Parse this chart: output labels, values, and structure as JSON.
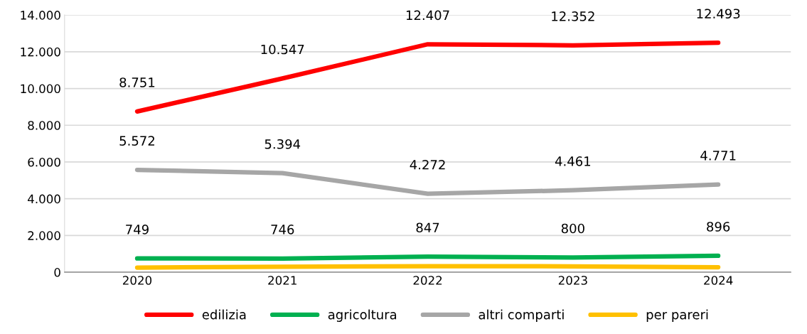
{
  "chart_data": {
    "type": "line",
    "categories": [
      "2020",
      "2021",
      "2022",
      "2023",
      "2024"
    ],
    "series": [
      {
        "name": "edilizia",
        "color": "#ff0000",
        "values": [
          8751,
          10547,
          12407,
          12352,
          12493
        ],
        "value_labels": [
          "8.751",
          "10.547",
          "12.407",
          "12.352",
          "12.493"
        ]
      },
      {
        "name": "agricoltura",
        "color": "#00b050",
        "values": [
          749,
          746,
          847,
          800,
          896
        ],
        "value_labels": [
          "749",
          "746",
          "847",
          "800",
          "896"
        ]
      },
      {
        "name": "altri comparti",
        "color": "#a6a6a6",
        "values": [
          5572,
          5394,
          4272,
          4461,
          4771
        ],
        "value_labels": [
          "5.572",
          "5.394",
          "4.272",
          "4.461",
          "4.771"
        ]
      },
      {
        "name": "per pareri",
        "color": "#ffc000",
        "values": [
          250,
          300,
          330,
          320,
          270
        ]
      }
    ],
    "ylim": [
      0,
      14000
    ],
    "yticks": [
      {
        "value": 0,
        "label": "0"
      },
      {
        "value": 2000,
        "label": "2.000"
      },
      {
        "value": 4000,
        "label": "4.000"
      },
      {
        "value": 6000,
        "label": "6.000"
      },
      {
        "value": 8000,
        "label": "8.000"
      },
      {
        "value": 10000,
        "label": "10.000"
      },
      {
        "value": 12000,
        "label": "12.000"
      },
      {
        "value": 14000,
        "label": "14.000"
      }
    ],
    "grid": "y",
    "legend": "bottom",
    "marker": "none",
    "line_style": "solid"
  }
}
